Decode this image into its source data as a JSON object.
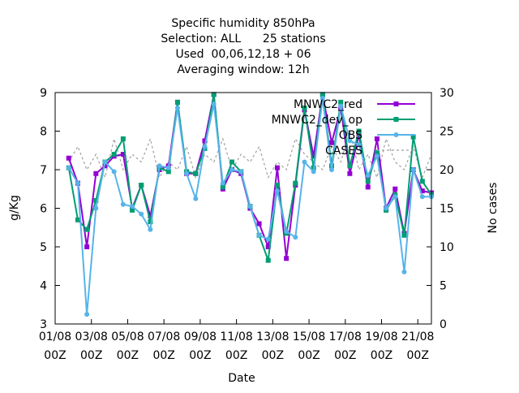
{
  "chart_data": {
    "type": "line",
    "title_lines": [
      "Specific humidity 850hPa",
      "Selection: ALL      25 stations",
      "Used  00,06,12,18 + 06",
      "Averaging window: 12h"
    ],
    "xlabel": "Date",
    "ylabel": "g/Kg",
    "y2label": "No cases",
    "xlim": [
      0,
      20.75
    ],
    "ylim": [
      3,
      9
    ],
    "y2lim": [
      0,
      30
    ],
    "y_ticks": [
      "3",
      "4",
      "5",
      "6",
      "7",
      "8",
      "9"
    ],
    "y2_ticks": [
      "0",
      "5",
      "10",
      "15",
      "20",
      "25",
      "30"
    ],
    "x_ticks": [
      {
        "x": 0,
        "date": "01/08",
        "hour": "00Z"
      },
      {
        "x": 2,
        "date": "03/08",
        "hour": "00Z"
      },
      {
        "x": 4,
        "date": "05/08",
        "hour": "00Z"
      },
      {
        "x": 6,
        "date": "07/08",
        "hour": "00Z"
      },
      {
        "x": 8,
        "date": "09/08",
        "hour": "00Z"
      },
      {
        "x": 10,
        "date": "11/08",
        "hour": "00Z"
      },
      {
        "x": 12,
        "date": "13/08",
        "hour": "00Z"
      },
      {
        "x": 14,
        "date": "15/08",
        "hour": "00Z"
      },
      {
        "x": 16,
        "date": "17/08",
        "hour": "00Z"
      },
      {
        "x": 18,
        "date": "19/08",
        "hour": "00Z"
      },
      {
        "x": 20,
        "date": "21/08",
        "hour": "00Z"
      }
    ],
    "x": [
      0.75,
      1.25,
      1.75,
      2.25,
      2.75,
      3.25,
      3.75,
      4.25,
      4.75,
      5.25,
      5.75,
      6.25,
      6.75,
      7.25,
      7.75,
      8.25,
      8.75,
      9.25,
      9.75,
      10.25,
      10.75,
      11.25,
      11.75,
      12.25,
      12.75,
      13.25,
      13.75,
      14.25,
      14.75,
      15.25,
      15.75,
      16.25,
      16.75,
      17.25,
      17.75,
      18.25,
      18.75,
      19.25,
      19.75,
      20.25,
      20.75
    ],
    "series": [
      {
        "name": "MNWC2_red",
        "color": "#9400d3",
        "marker": "square",
        "axis": "y",
        "values": [
          7.3,
          6.65,
          5.0,
          6.9,
          7.1,
          7.35,
          7.4,
          6.0,
          6.6,
          5.8,
          7.0,
          7.1,
          8.75,
          6.9,
          6.9,
          7.75,
          8.95,
          6.5,
          7.0,
          6.9,
          6.0,
          5.6,
          5.0,
          7.05,
          4.7,
          6.6,
          8.55,
          7.35,
          8.95,
          7.7,
          8.6,
          6.9,
          7.9,
          6.55,
          7.8,
          6.0,
          6.5,
          5.35,
          7.0,
          6.45,
          6.4
        ]
      },
      {
        "name": "MNWC2_dev_op",
        "color": "#009e73",
        "marker": "square",
        "axis": "y",
        "values": [
          7.05,
          5.7,
          5.45,
          6.2,
          7.2,
          7.4,
          7.8,
          5.95,
          6.6,
          5.65,
          7.05,
          6.95,
          8.75,
          6.95,
          6.9,
          7.55,
          8.95,
          6.55,
          7.2,
          6.95,
          6.05,
          5.3,
          4.65,
          6.6,
          5.35,
          6.65,
          8.6,
          7.05,
          8.95,
          7.1,
          8.75,
          7.1,
          8.0,
          6.7,
          7.45,
          5.95,
          6.35,
          5.3,
          7.85,
          6.7,
          6.35
        ]
      },
      {
        "name": "OBS",
        "color": "#56b4e9",
        "marker": "circle",
        "axis": "y",
        "values": [
          7.05,
          6.65,
          3.25,
          6.0,
          7.2,
          6.95,
          6.1,
          6.05,
          5.85,
          5.45,
          7.1,
          7.05,
          8.6,
          6.9,
          6.25,
          7.6,
          8.7,
          6.65,
          7.0,
          6.95,
          6.05,
          5.3,
          5.2,
          6.45,
          5.4,
          5.25,
          7.2,
          6.95,
          8.85,
          7.0,
          8.65,
          7.75,
          7.65,
          6.85,
          7.35,
          6.0,
          6.3,
          4.35,
          7.0,
          6.3,
          6.3
        ]
      },
      {
        "name": "CASES",
        "color": "#a0a0a0",
        "marker": "none",
        "dash": "dotted",
        "axis": "y2",
        "values": [
          21,
          23,
          20,
          22,
          19,
          24,
          20,
          22,
          21,
          24,
          19,
          21,
          20,
          23,
          19,
          22,
          21,
          24,
          20,
          22,
          21,
          23,
          19,
          21,
          20,
          24,
          22,
          21,
          20,
          23,
          21,
          25,
          20,
          22,
          19,
          24,
          21,
          20,
          23,
          19,
          22
        ]
      }
    ],
    "legend_labels": [
      "MNWC2_red",
      "MNWC2_dev_op",
      "OBS",
      "CASES"
    ],
    "legend_position": "top-right",
    "grid": false
  }
}
